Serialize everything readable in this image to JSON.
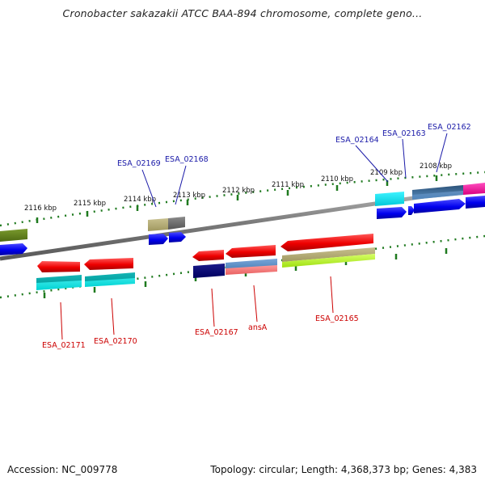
{
  "title": "Cronobacter sakazakii ATCC BAA-894 chromosome, complete geno...",
  "footer": {
    "accession": "Accession: NC_009778",
    "summary": "Topology: circular; Length: 4,368,373 bp; Genes: 4,383"
  },
  "ticks": [
    "2116 kbp",
    "2115 kbp",
    "2114 kbp",
    "2113 kbp",
    "2112 kbp",
    "2111 kbp",
    "2110 kbp",
    "2109 kbp",
    "2108 kbp"
  ],
  "labels": {
    "top": [
      "ESA_02169",
      "ESA_02168",
      "ESA_02164",
      "ESA_02163",
      "ESA_02162"
    ],
    "bottom": [
      "ESA_02171",
      "ESA_02170",
      "ESA_02167",
      "ansA",
      "ESA_02165"
    ]
  },
  "colors": {
    "top_label": "#1a1aa8",
    "bottom_label": "#cc0000",
    "tick_green": "#1f7a1f",
    "backbone": "#7a7a7a"
  }
}
